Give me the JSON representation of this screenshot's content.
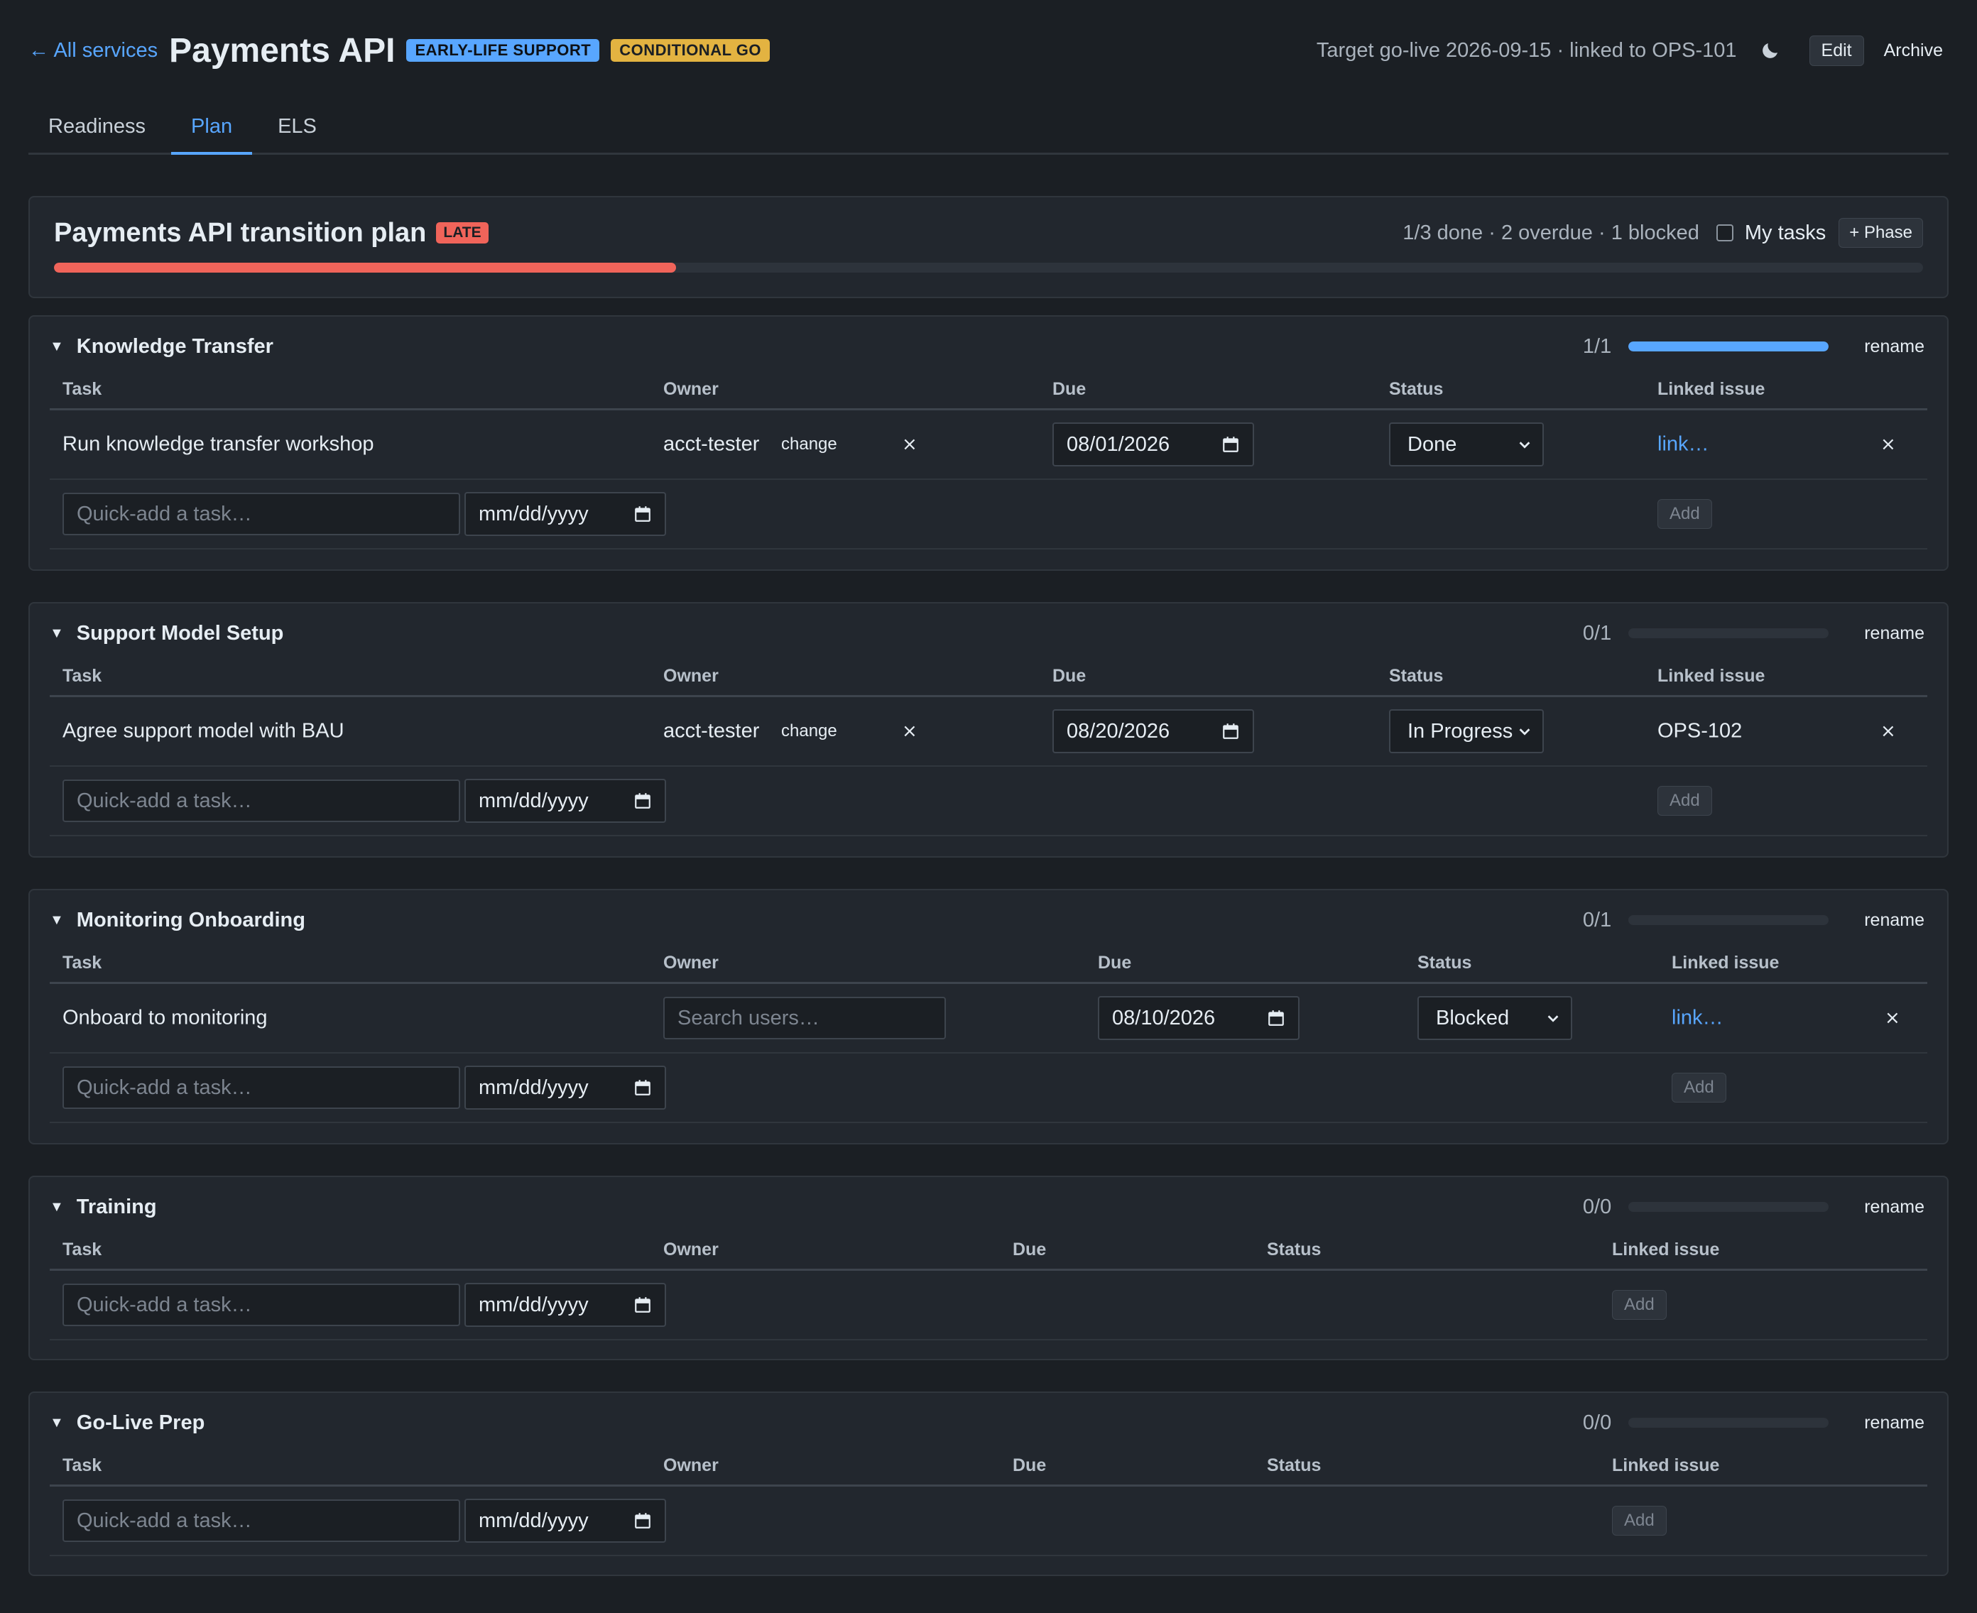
{
  "header": {
    "back_label": "← All services",
    "title": "Payments API",
    "badge_els": "EARLY-LIFE SUPPORT",
    "badge_go": "CONDITIONAL GO",
    "target_text": "Target go-live 2026-09-15 · linked to OPS-101",
    "edit_label": "Edit",
    "archive_label": "Archive"
  },
  "tabs": [
    {
      "label": "Readiness",
      "active": false
    },
    {
      "label": "Plan",
      "active": true
    },
    {
      "label": "ELS",
      "active": false
    }
  ],
  "plan": {
    "title": "Payments API transition plan",
    "late_badge": "LATE",
    "summary": "1/3 done · 2 overdue · 1 blocked",
    "my_tasks_label": "My tasks",
    "my_tasks_checked": false,
    "add_phase_label": "+ Phase",
    "progress_fraction": 0.333
  },
  "columns": {
    "task": "Task",
    "owner": "Owner",
    "due": "Due",
    "status": "Status",
    "linked": "Linked issue"
  },
  "common": {
    "rename_label": "rename",
    "change_label": "change",
    "remove_glyph": "×",
    "quick_add_placeholder": "Quick-add a task…",
    "date_placeholder": "mm/dd/yyyy",
    "add_label": "Add",
    "search_users_placeholder": "Search users…"
  },
  "phases": [
    {
      "name": "Knowledge Transfer",
      "count": "1/1",
      "progress_fraction": 1.0,
      "tasks": [
        {
          "task": "Run knowledge transfer workshop",
          "owner": "acct-tester",
          "due": "08/01/2026",
          "status": "Done",
          "linked": "link…",
          "linked_is_link": true
        }
      ]
    },
    {
      "name": "Support Model Setup",
      "count": "0/1",
      "progress_fraction": 0.0,
      "tasks": [
        {
          "task": "Agree support model with BAU",
          "owner": "acct-tester",
          "due": "08/20/2026",
          "status": "In Progress",
          "linked": "OPS-102",
          "linked_is_link": false
        }
      ]
    },
    {
      "name": "Monitoring Onboarding",
      "count": "0/1",
      "progress_fraction": 0.0,
      "tasks": [
        {
          "task": "Onboard to monitoring",
          "owner": "",
          "due": "08/10/2026",
          "status": "Blocked",
          "linked": "link…",
          "linked_is_link": true
        }
      ]
    },
    {
      "name": "Training",
      "count": "0/0",
      "progress_fraction": 0.0,
      "tasks": []
    },
    {
      "name": "Go-Live Prep",
      "count": "0/0",
      "progress_fraction": 0.0,
      "tasks": []
    }
  ],
  "colors": {
    "accent": "#58a6ff",
    "late": "#f0645a",
    "conditional": "#e3b341",
    "background": "#1b1f24",
    "card": "#22272e"
  }
}
